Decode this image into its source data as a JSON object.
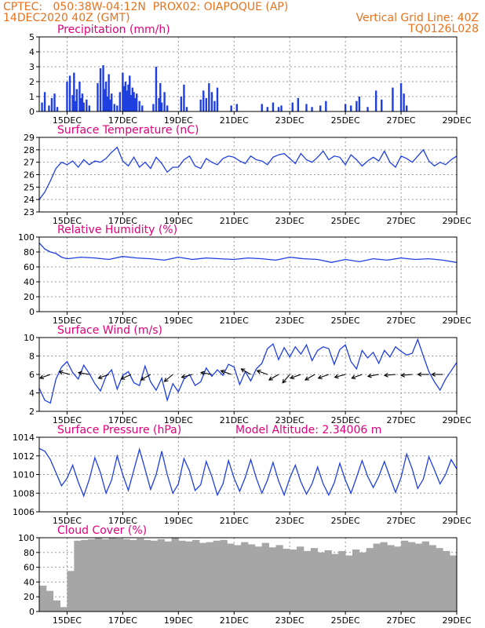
{
  "header": {
    "source": "CPTEC:",
    "coords": "050:38W-04:12N",
    "station": "PROX02: OIAPOQUE (AP)",
    "run": "14DEC2020 40Z (GMT)",
    "grid_note": "Vertical Grid Line: 40Z",
    "model": "TQ0126L028"
  },
  "colors": {
    "header": "#e8721c",
    "title": "#e0007a",
    "series": "#1f3fe0",
    "cloud": "#a6a6a6",
    "grid": "#999999"
  },
  "chart_data": [
    {
      "type": "bar",
      "title": "Precipitation (mm/h)",
      "ylim": [
        0,
        5
      ],
      "yticks": [
        "0",
        "1",
        "2",
        "3",
        "4",
        "5"
      ],
      "xticks": [
        "15DEC",
        "17DEC",
        "19DEC",
        "21DEC",
        "23DEC",
        "25DEC",
        "27DEC",
        "29DEC"
      ],
      "x_unit": "days since 14DEC2020 00Z",
      "series": [
        {
          "x": [
            0.1,
            0.2,
            0.35,
            0.45,
            0.55,
            0.65,
            1.0,
            1.1,
            1.2,
            1.25,
            1.3,
            1.35,
            1.45,
            1.5,
            1.55,
            1.6,
            1.7,
            1.8,
            2.1,
            2.2,
            2.3,
            2.35,
            2.4,
            2.45,
            2.5,
            2.55,
            2.6,
            2.7,
            2.8,
            2.9,
            3.0,
            3.05,
            3.1,
            3.15,
            3.2,
            3.25,
            3.3,
            3.35,
            3.4,
            3.45,
            3.5,
            3.6,
            3.7,
            4.1,
            4.2,
            4.3,
            4.35,
            4.4,
            4.5,
            4.6,
            5.1,
            5.2,
            5.3,
            5.8,
            5.9,
            6.0,
            6.1,
            6.2,
            6.3,
            6.4,
            6.9,
            7.1,
            8.0,
            8.2,
            8.4,
            8.6,
            8.7,
            9.1,
            9.3,
            9.6,
            9.8,
            10.1,
            10.3,
            11.0,
            11.2,
            11.4,
            11.5,
            11.8,
            12.1,
            12.3,
            12.7,
            13.0,
            13.1,
            13.2
          ],
          "values": [
            0.6,
            1.3,
            0.4,
            0.9,
            1.2,
            0.3,
            2.0,
            2.4,
            1.1,
            2.6,
            0.7,
            1.5,
            2.0,
            0.9,
            1.2,
            0.6,
            0.8,
            0.4,
            1.9,
            2.9,
            3.1,
            1.5,
            2.0,
            1.0,
            2.5,
            0.8,
            1.2,
            0.5,
            0.4,
            1.3,
            2.6,
            1.7,
            2.0,
            1.4,
            1.8,
            2.4,
            1.1,
            1.6,
            1.3,
            0.9,
            1.2,
            0.7,
            0.4,
            0.5,
            3.0,
            0.9,
            1.9,
            0.6,
            1.3,
            0.4,
            1.0,
            1.8,
            0.3,
            0.8,
            1.4,
            0.9,
            1.9,
            1.3,
            0.7,
            1.6,
            0.4,
            0.5,
            0.5,
            0.3,
            0.6,
            0.3,
            0.4,
            0.6,
            0.9,
            0.5,
            0.3,
            0.4,
            0.7,
            0.5,
            0.4,
            0.7,
            1.0,
            0.3,
            1.4,
            0.8,
            1.6,
            1.9,
            1.2,
            0.4
          ]
        }
      ]
    },
    {
      "type": "line",
      "title": "Surface Temperature (nC)",
      "ylim": [
        23,
        29
      ],
      "yticks": [
        "23",
        "24",
        "25",
        "26",
        "27",
        "28",
        "29"
      ],
      "xticks": [
        "15DEC",
        "17DEC",
        "19DEC",
        "21DEC",
        "23DEC",
        "25DEC",
        "27DEC",
        "29DEC"
      ],
      "series": [
        {
          "x": [
            0,
            0.2,
            0.4,
            0.6,
            0.8,
            1.0,
            1.2,
            1.4,
            1.6,
            1.8,
            2.0,
            2.2,
            2.4,
            2.6,
            2.8,
            3.0,
            3.2,
            3.4,
            3.6,
            3.8,
            4.0,
            4.2,
            4.4,
            4.6,
            4.8,
            5.0,
            5.2,
            5.4,
            5.6,
            5.8,
            6.0,
            6.2,
            6.4,
            6.6,
            6.8,
            7.0,
            7.2,
            7.4,
            7.6,
            7.8,
            8.0,
            8.2,
            8.4,
            8.6,
            8.8,
            9.0,
            9.2,
            9.4,
            9.6,
            9.8,
            10.0,
            10.2,
            10.4,
            10.6,
            10.8,
            11.0,
            11.2,
            11.4,
            11.6,
            11.8,
            12.0,
            12.2,
            12.4,
            12.6,
            12.8,
            13.0,
            13.2,
            13.4,
            13.6,
            13.8,
            14.0,
            14.2,
            14.4,
            14.6,
            14.8,
            15.0
          ],
          "values": [
            24.0,
            24.6,
            25.5,
            26.5,
            27.0,
            26.8,
            27.1,
            26.6,
            27.2,
            26.8,
            27.1,
            27.0,
            27.3,
            27.8,
            28.2,
            27.1,
            26.7,
            27.4,
            26.6,
            27.0,
            26.5,
            27.4,
            26.9,
            26.2,
            26.6,
            26.6,
            27.2,
            27.5,
            26.7,
            26.5,
            27.3,
            27.0,
            26.8,
            27.3,
            27.5,
            27.4,
            27.1,
            26.9,
            27.5,
            27.2,
            27.1,
            26.8,
            27.4,
            27.6,
            27.7,
            27.3,
            26.9,
            27.7,
            27.2,
            27.0,
            27.4,
            27.9,
            27.2,
            27.5,
            27.4,
            26.8,
            27.6,
            27.2,
            26.7,
            27.1,
            27.4,
            27.1,
            27.9,
            27.0,
            26.6,
            27.5,
            27.3,
            27.0,
            27.5,
            28.0,
            27.1,
            26.7,
            27.0,
            26.8,
            27.2,
            27.5
          ]
        }
      ]
    },
    {
      "type": "line",
      "title": "Relative Humidity (%)",
      "ylim": [
        0,
        100
      ],
      "yticks": [
        "0",
        "20",
        "40",
        "60",
        "80",
        "100"
      ],
      "xticks": [
        "15DEC",
        "17DEC",
        "19DEC",
        "21DEC",
        "23DEC",
        "25DEC",
        "27DEC",
        "29DEC"
      ],
      "series": [
        {
          "x": [
            0,
            0.2,
            0.4,
            0.6,
            0.8,
            1.0,
            1.5,
            2.0,
            2.5,
            3.0,
            3.5,
            4.0,
            4.5,
            5.0,
            5.5,
            6.0,
            6.5,
            7.0,
            7.5,
            8.0,
            8.5,
            9.0,
            9.5,
            10.0,
            10.5,
            11.0,
            11.5,
            12.0,
            12.5,
            13.0,
            13.5,
            14.0,
            14.5,
            15.0
          ],
          "values": [
            92,
            84,
            80,
            78,
            73,
            71,
            73,
            72,
            70,
            74,
            72,
            71,
            69,
            73,
            70,
            72,
            71,
            70,
            72,
            71,
            69,
            73,
            71,
            70,
            66,
            70,
            67,
            71,
            69,
            72,
            70,
            71,
            69,
            66
          ]
        }
      ]
    },
    {
      "type": "line",
      "title": "Surface Wind (m/s)",
      "ylim": [
        2,
        10
      ],
      "yticks": [
        "2",
        "4",
        "6",
        "8",
        "10"
      ],
      "xticks": [
        "15DEC",
        "17DEC",
        "19DEC",
        "21DEC",
        "23DEC",
        "25DEC",
        "27DEC",
        "29DEC"
      ],
      "series": [
        {
          "x": [
            0,
            0.2,
            0.4,
            0.6,
            0.8,
            1.0,
            1.2,
            1.4,
            1.6,
            1.8,
            2.0,
            2.2,
            2.4,
            2.6,
            2.8,
            3.0,
            3.2,
            3.4,
            3.6,
            3.8,
            4.0,
            4.2,
            4.4,
            4.6,
            4.8,
            5.0,
            5.2,
            5.4,
            5.6,
            5.8,
            6.0,
            6.2,
            6.4,
            6.6,
            6.8,
            7.0,
            7.2,
            7.4,
            7.6,
            7.8,
            8.0,
            8.2,
            8.4,
            8.6,
            8.8,
            9.0,
            9.2,
            9.4,
            9.6,
            9.8,
            10.0,
            10.2,
            10.4,
            10.6,
            10.8,
            11.0,
            11.2,
            11.4,
            11.6,
            11.8,
            12.0,
            12.2,
            12.4,
            12.6,
            12.8,
            13.0,
            13.2,
            13.4,
            13.6,
            13.8,
            14.0,
            14.2,
            14.4,
            14.6,
            14.8,
            15.0
          ],
          "values": [
            4.5,
            3.2,
            2.9,
            5.5,
            6.8,
            7.4,
            6.2,
            5.5,
            7.0,
            6.1,
            5.0,
            4.2,
            5.8,
            6.5,
            4.4,
            5.9,
            6.3,
            5.1,
            4.8,
            6.9,
            5.2,
            4.3,
            5.6,
            3.2,
            5.0,
            4.1,
            5.5,
            6.0,
            4.8,
            5.2,
            6.7,
            5.8,
            6.5,
            5.9,
            7.1,
            6.8,
            4.9,
            6.3,
            5.3,
            6.6,
            7.2,
            8.8,
            9.3,
            7.6,
            8.9,
            7.9,
            9.0,
            8.2,
            9.2,
            7.5,
            8.6,
            9.0,
            8.8,
            7.1,
            8.7,
            9.2,
            7.4,
            6.6,
            8.6,
            7.8,
            8.4,
            7.2,
            8.6,
            7.9,
            9.0,
            8.5,
            8.1,
            8.3,
            9.8,
            8.0,
            6.3,
            5.2,
            4.3,
            5.5,
            6.4,
            7.3
          ]
        }
      ],
      "barbs": [
        {
          "x": 0.4,
          "deg": 200
        },
        {
          "x": 1.1,
          "deg": 165
        },
        {
          "x": 1.8,
          "deg": 170
        },
        {
          "x": 2.5,
          "deg": 200
        },
        {
          "x": 3.3,
          "deg": 205
        },
        {
          "x": 4.0,
          "deg": 210
        },
        {
          "x": 4.8,
          "deg": 220
        },
        {
          "x": 5.5,
          "deg": 195
        },
        {
          "x": 6.2,
          "deg": 170
        },
        {
          "x": 6.9,
          "deg": 160
        },
        {
          "x": 7.6,
          "deg": 150
        },
        {
          "x": 8.2,
          "deg": 160
        },
        {
          "x": 8.6,
          "deg": 210
        },
        {
          "x": 9.0,
          "deg": 230
        },
        {
          "x": 9.4,
          "deg": 200
        },
        {
          "x": 9.9,
          "deg": 210
        },
        {
          "x": 10.4,
          "deg": 200
        },
        {
          "x": 11.0,
          "deg": 195
        },
        {
          "x": 11.6,
          "deg": 200
        },
        {
          "x": 12.2,
          "deg": 190
        },
        {
          "x": 12.8,
          "deg": 185
        },
        {
          "x": 13.4,
          "deg": 185
        },
        {
          "x": 14.0,
          "deg": 180
        },
        {
          "x": 14.5,
          "deg": 180
        }
      ]
    },
    {
      "type": "line",
      "title": "Surface Pressure (hPa)",
      "annotation": "Model Altitude: 2.34006 m",
      "ylim": [
        1006,
        1014
      ],
      "yticks": [
        "1006",
        "1008",
        "1010",
        "1012",
        "1014"
      ],
      "xticks": [
        "15DEC",
        "17DEC",
        "19DEC",
        "21DEC",
        "23DEC",
        "25DEC",
        "27DEC",
        "29DEC"
      ],
      "series": [
        {
          "x": [
            0,
            0.2,
            0.4,
            0.6,
            0.8,
            1.0,
            1.2,
            1.4,
            1.6,
            1.8,
            2.0,
            2.2,
            2.4,
            2.6,
            2.8,
            3.0,
            3.2,
            3.4,
            3.6,
            3.8,
            4.0,
            4.2,
            4.4,
            4.6,
            4.8,
            5.0,
            5.2,
            5.4,
            5.6,
            5.8,
            6.0,
            6.2,
            6.4,
            6.6,
            6.8,
            7.0,
            7.2,
            7.4,
            7.6,
            7.8,
            8.0,
            8.2,
            8.4,
            8.6,
            8.8,
            9.0,
            9.2,
            9.4,
            9.6,
            9.8,
            10.0,
            10.2,
            10.4,
            10.6,
            10.8,
            11.0,
            11.2,
            11.4,
            11.6,
            11.8,
            12.0,
            12.2,
            12.4,
            12.6,
            12.8,
            13.0,
            13.2,
            13.4,
            13.6,
            13.8,
            14.0,
            14.2,
            14.4,
            14.6,
            14.8,
            15.0
          ],
          "values": [
            1012.8,
            1012.5,
            1011.6,
            1010.2,
            1008.8,
            1009.6,
            1011.0,
            1009.2,
            1007.7,
            1009.5,
            1011.8,
            1010.2,
            1008.0,
            1009.4,
            1012.0,
            1010.0,
            1008.3,
            1010.5,
            1012.7,
            1010.6,
            1008.4,
            1010.0,
            1012.5,
            1010.0,
            1008.0,
            1009.0,
            1011.7,
            1010.4,
            1008.3,
            1008.9,
            1011.4,
            1009.8,
            1007.8,
            1009.0,
            1011.5,
            1009.6,
            1008.2,
            1009.7,
            1011.6,
            1009.6,
            1008.0,
            1009.4,
            1011.3,
            1009.3,
            1007.8,
            1009.6,
            1011.0,
            1009.2,
            1007.9,
            1009.0,
            1010.8,
            1009.0,
            1007.8,
            1009.1,
            1011.2,
            1009.4,
            1008.0,
            1009.7,
            1011.5,
            1009.8,
            1008.6,
            1009.8,
            1011.4,
            1009.7,
            1008.1,
            1009.7,
            1012.2,
            1010.6,
            1008.5,
            1009.5,
            1011.9,
            1010.5,
            1009.0,
            1010.0,
            1011.6,
            1010.6
          ]
        }
      ]
    },
    {
      "type": "bar",
      "title": "Cloud Cover (%)",
      "ylim": [
        0,
        100
      ],
      "yticks": [
        "0",
        "20",
        "40",
        "60",
        "80",
        "100"
      ],
      "xticks": [
        "15DEC",
        "17DEC",
        "19DEC",
        "21DEC",
        "23DEC",
        "25DEC",
        "27DEC",
        "29DEC"
      ],
      "series": [
        {
          "x": [
            0.0,
            0.25,
            0.5,
            0.75,
            1.0,
            1.25,
            1.5,
            1.75,
            2.0,
            2.25,
            2.5,
            2.75,
            3.0,
            3.25,
            3.5,
            3.75,
            4.0,
            4.25,
            4.5,
            4.75,
            5.0,
            5.25,
            5.5,
            5.75,
            6.0,
            6.25,
            6.5,
            6.75,
            7.0,
            7.25,
            7.5,
            7.75,
            8.0,
            8.25,
            8.5,
            8.75,
            9.0,
            9.25,
            9.5,
            9.75,
            10.0,
            10.25,
            10.5,
            10.75,
            11.0,
            11.25,
            11.5,
            11.75,
            12.0,
            12.25,
            12.5,
            12.75,
            13.0,
            13.25,
            13.5,
            13.75,
            14.0,
            14.25,
            14.5,
            14.75
          ],
          "values": [
            35,
            28,
            15,
            6,
            55,
            96,
            97,
            98,
            100,
            98,
            100,
            99,
            98,
            97,
            99,
            97,
            96,
            98,
            95,
            100,
            96,
            95,
            97,
            93,
            94,
            96,
            97,
            92,
            90,
            94,
            91,
            88,
            93,
            87,
            90,
            85,
            84,
            88,
            82,
            86,
            80,
            83,
            78,
            82,
            76,
            84,
            80,
            86,
            92,
            94,
            90,
            88,
            96,
            94,
            92,
            95,
            90,
            86,
            82,
            76
          ]
        }
      ]
    }
  ]
}
